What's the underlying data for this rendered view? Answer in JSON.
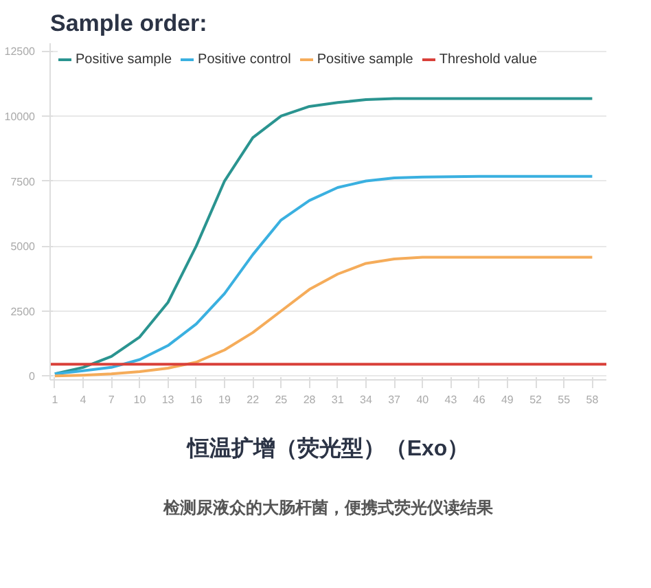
{
  "chart_data": {
    "type": "line",
    "title": "Sample order:",
    "annotations": [
      "恒温扩增（荧光型）（Exo）",
      "检测尿液众的大肠杆菌，便携式荧光仪读结果"
    ],
    "x": [
      1,
      4,
      7,
      10,
      13,
      16,
      19,
      22,
      25,
      28,
      31,
      34,
      37,
      40,
      46,
      52,
      58
    ],
    "series": [
      {
        "name": "Positive sample",
        "color": "#2a9490",
        "values": [
          80,
          330,
          750,
          1500,
          2830,
          5000,
          7500,
          9170,
          10000,
          10370,
          10520,
          10630,
          10670,
          10670,
          10670,
          10670,
          10670
        ]
      },
      {
        "name": "Positive control",
        "color": "#3ab0e0",
        "values": [
          80,
          200,
          330,
          630,
          1170,
          2000,
          3170,
          4670,
          6000,
          6750,
          7250,
          7500,
          7620,
          7650,
          7680,
          7680,
          7680
        ]
      },
      {
        "name": "Positive sample",
        "color": "#f5ac5a",
        "values": [
          0,
          30,
          80,
          170,
          300,
          530,
          1000,
          1670,
          2500,
          3330,
          3920,
          4330,
          4500,
          4570,
          4570,
          4570,
          4570
        ]
      }
    ],
    "ref_lines": [
      {
        "axis": "y",
        "value": 450,
        "label": "Threshold value",
        "color": "#d9403a"
      }
    ],
    "xlim": [
      0.5,
      59.5
    ],
    "ylim": [
      -150,
      12800
    ],
    "xticks": [
      1,
      4,
      7,
      10,
      13,
      16,
      19,
      22,
      25,
      28,
      31,
      34,
      37,
      40,
      43,
      46,
      49,
      52,
      55,
      58
    ],
    "yticks": [
      0,
      2500,
      5000,
      7500,
      10000,
      12500
    ],
    "grid": "y",
    "legend": "top left",
    "line_style": "solid",
    "marker": "none"
  }
}
